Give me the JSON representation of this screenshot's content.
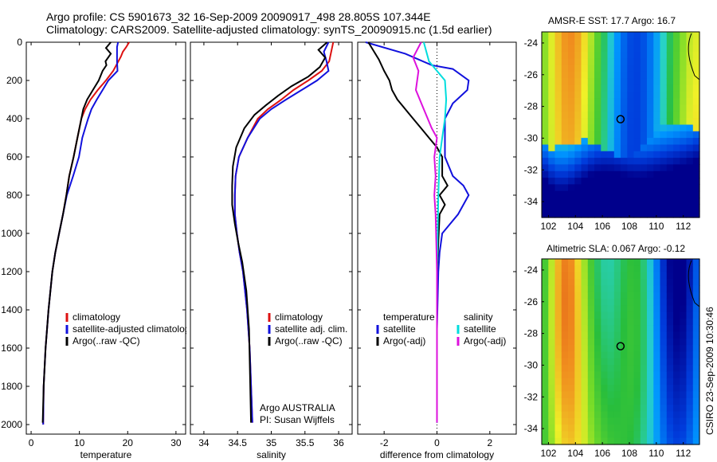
{
  "header": {
    "title_line1": "Argo profile: CS 5901673_32 16-Sep-2009 20090917_498 28.805S 107.344E",
    "title_line2": "Climatology: CARS2009. Satellite-adjusted climatology: synTS_20090915.nc (1.5d earlier)"
  },
  "side_label": "CSIRO 23-Sep-2009 10:30:46",
  "colors": {
    "climatology": "#dd1111",
    "satellite": "#1111dd",
    "argo": "#000000",
    "sat_salinity": "#00dddd",
    "argo_salinity_diff": "#dd11dd"
  },
  "chart_data": [
    {
      "type": "line",
      "xlabel": "temperature",
      "ylabel": "",
      "xlim": [
        -1,
        32
      ],
      "ylim": [
        2050,
        0
      ],
      "xticks": [
        0,
        10,
        20,
        30
      ],
      "yticks": [
        0,
        200,
        400,
        600,
        800,
        1000,
        1200,
        1400,
        1600,
        1800,
        2000
      ],
      "legend": [
        "climatology",
        "satellite-adjusted climatolog",
        "Argo(..raw -QC)"
      ],
      "series": [
        {
          "name": "climatology",
          "color": "#dd1111",
          "x": [
            20.3,
            19.7,
            19.0,
            18.6,
            17.0,
            15.5,
            13.8,
            12.3,
            11.2,
            10.4,
            9.6,
            8.8,
            7.9,
            7.3,
            6.6,
            5.8,
            5.0,
            4.4,
            3.6,
            3.0,
            2.6,
            2.5
          ],
          "y": [
            0,
            25,
            50,
            75,
            150,
            200,
            250,
            300,
            350,
            400,
            500,
            600,
            700,
            800,
            900,
            1000,
            1100,
            1200,
            1400,
            1600,
            1800,
            2000
          ]
        },
        {
          "name": "satellite-adjusted climatolog",
          "color": "#1111dd",
          "x": [
            18.0,
            17.8,
            17.8,
            17.9,
            16.0,
            14.8,
            13.6,
            12.5,
            11.8,
            11.2,
            10.6,
            9.9,
            8.7,
            7.4,
            6.6,
            5.8,
            5.0,
            4.4,
            3.6,
            3.0,
            2.6,
            2.5
          ],
          "y": [
            0,
            25,
            100,
            150,
            200,
            250,
            300,
            350,
            400,
            450,
            500,
            600,
            700,
            800,
            900,
            1000,
            1100,
            1200,
            1400,
            1600,
            1800,
            2000
          ]
        },
        {
          "name": "Argo(..raw -QC)",
          "color": "#000000",
          "x": [
            16.5,
            15.5,
            16.5,
            15.4,
            15.6,
            14.8,
            14.0,
            12.8,
            11.6,
            10.8,
            10.4,
            9.6,
            8.8,
            7.9,
            7.3,
            6.6,
            5.8,
            5.0,
            4.4,
            3.6,
            3.0,
            2.6,
            2.4
          ],
          "y": [
            0,
            30,
            60,
            100,
            120,
            150,
            200,
            250,
            300,
            350,
            400,
            500,
            600,
            700,
            800,
            900,
            1000,
            1100,
            1200,
            1400,
            1600,
            1800,
            1990
          ]
        }
      ]
    },
    {
      "type": "line",
      "xlabel": "salinity",
      "ylabel": "",
      "xlim": [
        33.8,
        36.2
      ],
      "ylim": [
        2050,
        0
      ],
      "xticks": [
        34,
        34.5,
        35,
        35.5,
        36
      ],
      "legend": [
        "climatology",
        "satellite adj. clim.",
        "Argo(..raw -QC)"
      ],
      "annotation": [
        "Argo AUSTRALIA",
        "PI: Susan Wijffels"
      ],
      "series": [
        {
          "name": "climatology",
          "color": "#dd1111",
          "x": [
            35.92,
            35.86,
            35.75,
            35.55,
            35.33,
            35.15,
            34.95,
            34.8,
            34.65,
            34.52,
            34.47,
            34.46,
            34.46,
            34.49,
            34.53,
            34.58,
            34.64,
            34.68,
            34.72
          ],
          "y": [
            0,
            100,
            150,
            200,
            250,
            300,
            350,
            400,
            500,
            600,
            700,
            800,
            900,
            1000,
            1100,
            1200,
            1400,
            1600,
            1990
          ]
        },
        {
          "name": "satellite adj. clim.",
          "color": "#1111dd",
          "x": [
            35.85,
            35.78,
            35.82,
            35.85,
            35.68,
            35.45,
            35.22,
            35.0,
            34.83,
            34.65,
            34.52,
            34.47,
            34.46,
            34.46,
            34.49,
            34.53,
            34.58,
            34.64,
            34.68,
            34.72
          ],
          "y": [
            0,
            50,
            100,
            150,
            200,
            250,
            300,
            350,
            400,
            500,
            600,
            700,
            800,
            900,
            1000,
            1100,
            1200,
            1400,
            1600,
            1990
          ]
        },
        {
          "name": "Argo(..raw -QC)",
          "color": "#000000",
          "x": [
            35.83,
            35.7,
            35.8,
            35.72,
            35.55,
            35.3,
            35.1,
            34.92,
            34.75,
            34.6,
            34.48,
            34.43,
            34.42,
            34.42,
            34.46,
            34.51,
            34.57,
            34.63,
            34.67,
            34.7
          ],
          "y": [
            0,
            40,
            80,
            130,
            180,
            230,
            280,
            330,
            380,
            450,
            550,
            650,
            750,
            850,
            950,
            1050,
            1150,
            1300,
            1500,
            1990
          ]
        }
      ]
    },
    {
      "type": "line",
      "xlabel": "difference from climatology",
      "ylabel": "",
      "xlim": [
        -3,
        3
      ],
      "ylim": [
        2050,
        0
      ],
      "xticks": [
        -2,
        0,
        2
      ],
      "legend_left": [
        "temperature",
        "satellite",
        "Argo(-adj)"
      ],
      "legend_right": [
        "salinity",
        "satellite",
        "Argo(-adj)"
      ],
      "series": [
        {
          "name": "temperature satellite",
          "color": "#1111dd",
          "x": [
            -2.7,
            -1.2,
            -0.2,
            0.6,
            1.2,
            1.15,
            0.6,
            0.3,
            0.3,
            0.3,
            0.6,
            1.0,
            1.2,
            0.8,
            0.2,
            0.1,
            0.05,
            0.0,
            0.0
          ],
          "y": [
            0,
            60,
            120,
            140,
            200,
            250,
            320,
            400,
            500,
            600,
            700,
            750,
            800,
            900,
            1000,
            1100,
            1200,
            1500,
            1990
          ]
        },
        {
          "name": "temperature Argo(-adj)",
          "color": "#000000",
          "x": [
            -2.6,
            -2.2,
            -2.0,
            -1.8,
            -1.7,
            -1.5,
            -1.2,
            -0.9,
            -0.6,
            -0.3,
            0.0,
            0.2,
            0.2,
            0.4,
            0.1,
            0.3,
            0.1,
            0.0,
            0.0
          ],
          "y": [
            0,
            90,
            150,
            200,
            250,
            300,
            350,
            400,
            450,
            500,
            550,
            600,
            700,
            750,
            800,
            850,
            900,
            1200,
            1990
          ]
        },
        {
          "name": "salinity satellite",
          "color": "#00dddd",
          "x": [
            -0.5,
            -0.3,
            0.0,
            0.3,
            0.35,
            0.3,
            0.2,
            0.1,
            0.05,
            0.0,
            0.0
          ],
          "y": [
            0,
            100,
            150,
            200,
            300,
            400,
            500,
            600,
            800,
            1200,
            1990
          ]
        },
        {
          "name": "salinity Argo(-adj)",
          "color": "#dd11dd",
          "x": [
            -0.6,
            -0.9,
            -0.7,
            -0.8,
            -0.5,
            -0.2,
            0.0,
            -0.1,
            -0.05,
            -0.1,
            -0.05,
            0.0,
            0.0
          ],
          "y": [
            0,
            80,
            150,
            250,
            350,
            450,
            500,
            600,
            700,
            800,
            900,
            1200,
            1990
          ]
        }
      ]
    },
    {
      "type": "heatmap",
      "title": "AMSR-E SST: 17.7 Argo: 16.7",
      "xlim": [
        101.5,
        113.2
      ],
      "ylim": [
        -35,
        -23.3
      ],
      "xticks": [
        102,
        104,
        106,
        108,
        110,
        112
      ],
      "yticks": [
        -24,
        -26,
        -28,
        -30,
        -32,
        -34
      ],
      "marker": {
        "lon": 107.344,
        "lat": -28.805
      }
    },
    {
      "type": "heatmap",
      "title": "Altimetric SLA: 0.067 Argo: -0.12",
      "xlim": [
        101.5,
        113.2
      ],
      "ylim": [
        -35,
        -23.3
      ],
      "xticks": [
        102,
        104,
        106,
        108,
        110,
        112
      ],
      "yticks": [
        -24,
        -26,
        -28,
        -30,
        -32,
        -34
      ],
      "marker": {
        "lon": 107.344,
        "lat": -28.805
      }
    }
  ]
}
